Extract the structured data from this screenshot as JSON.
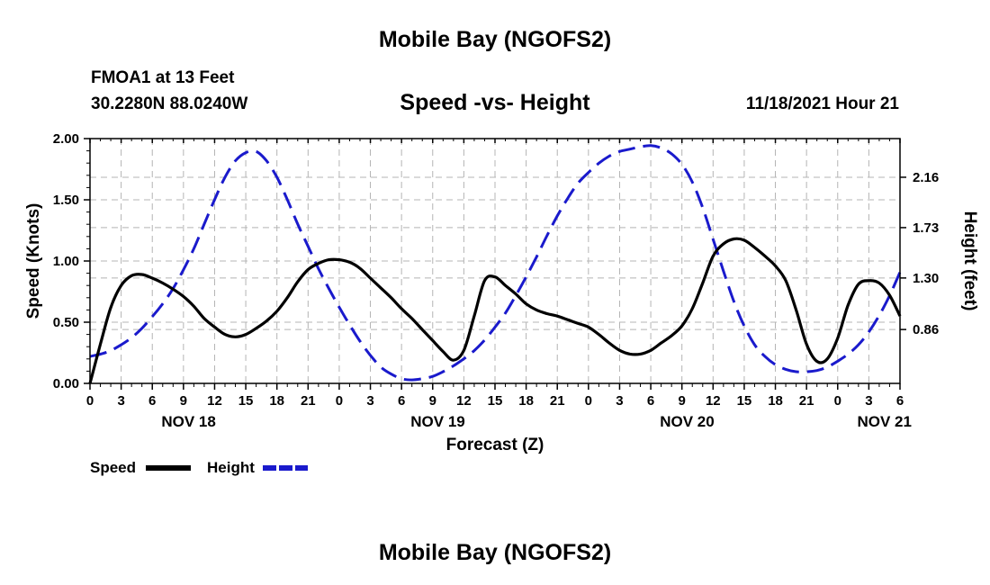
{
  "header": {
    "title": "Mobile Bay (NGOFS2)",
    "station": "FMOA1 at 13 Feet",
    "coordinates": "30.2280N  88.0240W",
    "subtitle": "Speed -vs- Height",
    "datetime": "11/18/2021 Hour 21",
    "bottom_title": "Mobile Bay (NGOFS2)"
  },
  "chart_data": {
    "type": "line",
    "title": "Speed -vs- Height",
    "xlabel": "Forecast (Z)",
    "ylabel": "Speed (Knots)",
    "y2label": "Height (feet)",
    "xlim": [
      0,
      78
    ],
    "ylim": [
      0,
      2.0
    ],
    "y2lim": [
      0.4,
      2.49
    ],
    "grid": true,
    "x_ticks": [
      {
        "x": 0,
        "label": "0"
      },
      {
        "x": 3,
        "label": "3"
      },
      {
        "x": 6,
        "label": "6"
      },
      {
        "x": 9,
        "label": "9"
      },
      {
        "x": 12,
        "label": "12"
      },
      {
        "x": 15,
        "label": "15"
      },
      {
        "x": 18,
        "label": "18"
      },
      {
        "x": 21,
        "label": "21"
      },
      {
        "x": 24,
        "label": "0"
      },
      {
        "x": 27,
        "label": "3"
      },
      {
        "x": 30,
        "label": "6"
      },
      {
        "x": 33,
        "label": "9"
      },
      {
        "x": 36,
        "label": "12"
      },
      {
        "x": 39,
        "label": "15"
      },
      {
        "x": 42,
        "label": "18"
      },
      {
        "x": 45,
        "label": "21"
      },
      {
        "x": 48,
        "label": "0"
      },
      {
        "x": 51,
        "label": "3"
      },
      {
        "x": 54,
        "label": "6"
      },
      {
        "x": 57,
        "label": "9"
      },
      {
        "x": 60,
        "label": "12"
      },
      {
        "x": 63,
        "label": "15"
      },
      {
        "x": 66,
        "label": "18"
      },
      {
        "x": 69,
        "label": "21"
      },
      {
        "x": 72,
        "label": "0"
      },
      {
        "x": 75,
        "label": "3"
      },
      {
        "x": 78,
        "label": "6"
      }
    ],
    "day_labels": [
      {
        "x": 9.5,
        "label": "NOV 18"
      },
      {
        "x": 33.5,
        "label": "NOV 19"
      },
      {
        "x": 57.5,
        "label": "NOV 20"
      },
      {
        "x": 76.5,
        "label": "NOV 21"
      }
    ],
    "y_ticks": [
      0.0,
      0.5,
      1.0,
      1.5,
      2.0
    ],
    "y_tick_labels": [
      "0.00",
      "0.50",
      "1.00",
      "1.50",
      "2.00"
    ],
    "y2_ticks": [
      0.86,
      1.3,
      1.73,
      2.16
    ],
    "y2_tick_labels": [
      "0.86",
      "1.30",
      "1.73",
      "2.16"
    ],
    "series": [
      {
        "name": "Speed",
        "axis": "left",
        "color": "#000000",
        "dash": "solid",
        "points": [
          [
            0,
            0.0
          ],
          [
            1,
            0.32
          ],
          [
            2,
            0.62
          ],
          [
            3,
            0.8
          ],
          [
            4,
            0.88
          ],
          [
            5,
            0.89
          ],
          [
            6,
            0.86
          ],
          [
            7,
            0.82
          ],
          [
            8,
            0.77
          ],
          [
            9,
            0.71
          ],
          [
            10,
            0.63
          ],
          [
            11,
            0.53
          ],
          [
            12,
            0.46
          ],
          [
            13,
            0.4
          ],
          [
            14,
            0.38
          ],
          [
            15,
            0.4
          ],
          [
            16,
            0.45
          ],
          [
            17,
            0.51
          ],
          [
            18,
            0.59
          ],
          [
            19,
            0.7
          ],
          [
            20,
            0.83
          ],
          [
            21,
            0.93
          ],
          [
            22,
            0.98
          ],
          [
            23,
            1.01
          ],
          [
            24,
            1.01
          ],
          [
            25,
            0.99
          ],
          [
            26,
            0.94
          ],
          [
            27,
            0.86
          ],
          [
            28,
            0.78
          ],
          [
            29,
            0.7
          ],
          [
            30,
            0.61
          ],
          [
            31,
            0.53
          ],
          [
            32,
            0.44
          ],
          [
            33,
            0.35
          ],
          [
            34,
            0.26
          ],
          [
            35,
            0.19
          ],
          [
            36,
            0.27
          ],
          [
            37,
            0.55
          ],
          [
            38,
            0.84
          ],
          [
            39,
            0.87
          ],
          [
            40,
            0.8
          ],
          [
            41,
            0.73
          ],
          [
            42,
            0.65
          ],
          [
            43,
            0.6
          ],
          [
            44,
            0.57
          ],
          [
            45,
            0.55
          ],
          [
            46,
            0.52
          ],
          [
            47,
            0.49
          ],
          [
            48,
            0.46
          ],
          [
            49,
            0.4
          ],
          [
            50,
            0.33
          ],
          [
            51,
            0.27
          ],
          [
            52,
            0.24
          ],
          [
            53,
            0.24
          ],
          [
            54,
            0.27
          ],
          [
            55,
            0.33
          ],
          [
            56,
            0.39
          ],
          [
            57,
            0.47
          ],
          [
            58,
            0.61
          ],
          [
            59,
            0.82
          ],
          [
            60,
            1.04
          ],
          [
            61,
            1.14
          ],
          [
            62,
            1.18
          ],
          [
            63,
            1.17
          ],
          [
            64,
            1.11
          ],
          [
            65,
            1.04
          ],
          [
            66,
            0.96
          ],
          [
            67,
            0.84
          ],
          [
            68,
            0.6
          ],
          [
            69,
            0.32
          ],
          [
            70,
            0.18
          ],
          [
            71,
            0.2
          ],
          [
            72,
            0.37
          ],
          [
            73,
            0.64
          ],
          [
            74,
            0.81
          ],
          [
            75,
            0.84
          ],
          [
            76,
            0.82
          ],
          [
            77,
            0.72
          ],
          [
            78,
            0.55
          ]
        ]
      },
      {
        "name": "Height",
        "axis": "right",
        "color": "#1a1acc",
        "dash": "dashed",
        "points": [
          [
            0,
            0.63
          ],
          [
            1,
            0.65
          ],
          [
            2,
            0.68
          ],
          [
            3,
            0.73
          ],
          [
            4,
            0.79
          ],
          [
            5,
            0.87
          ],
          [
            6,
            0.97
          ],
          [
            7,
            1.08
          ],
          [
            8,
            1.21
          ],
          [
            9,
            1.37
          ],
          [
            10,
            1.55
          ],
          [
            11,
            1.76
          ],
          [
            12,
            1.97
          ],
          [
            13,
            2.16
          ],
          [
            14,
            2.3
          ],
          [
            15,
            2.37
          ],
          [
            16,
            2.38
          ],
          [
            17,
            2.3
          ],
          [
            18,
            2.16
          ],
          [
            19,
            1.97
          ],
          [
            20,
            1.76
          ],
          [
            21,
            1.57
          ],
          [
            22,
            1.38
          ],
          [
            23,
            1.21
          ],
          [
            24,
            1.05
          ],
          [
            25,
            0.9
          ],
          [
            26,
            0.76
          ],
          [
            27,
            0.64
          ],
          [
            28,
            0.54
          ],
          [
            29,
            0.48
          ],
          [
            30,
            0.44
          ],
          [
            31,
            0.43
          ],
          [
            32,
            0.44
          ],
          [
            33,
            0.46
          ],
          [
            34,
            0.5
          ],
          [
            35,
            0.55
          ],
          [
            36,
            0.61
          ],
          [
            37,
            0.68
          ],
          [
            38,
            0.77
          ],
          [
            39,
            0.88
          ],
          [
            40,
            1.0
          ],
          [
            41,
            1.15
          ],
          [
            42,
            1.31
          ],
          [
            43,
            1.48
          ],
          [
            44,
            1.66
          ],
          [
            45,
            1.83
          ],
          [
            46,
            1.98
          ],
          [
            47,
            2.11
          ],
          [
            48,
            2.2
          ],
          [
            49,
            2.28
          ],
          [
            50,
            2.34
          ],
          [
            51,
            2.38
          ],
          [
            52,
            2.4
          ],
          [
            53,
            2.42
          ],
          [
            54,
            2.43
          ],
          [
            55,
            2.41
          ],
          [
            56,
            2.36
          ],
          [
            57,
            2.27
          ],
          [
            58,
            2.12
          ],
          [
            59,
            1.9
          ],
          [
            60,
            1.63
          ],
          [
            61,
            1.36
          ],
          [
            62,
            1.1
          ],
          [
            63,
            0.89
          ],
          [
            64,
            0.73
          ],
          [
            65,
            0.63
          ],
          [
            66,
            0.56
          ],
          [
            67,
            0.52
          ],
          [
            68,
            0.5
          ],
          [
            69,
            0.5
          ],
          [
            70,
            0.51
          ],
          [
            71,
            0.54
          ],
          [
            72,
            0.59
          ],
          [
            73,
            0.65
          ],
          [
            74,
            0.73
          ],
          [
            75,
            0.84
          ],
          [
            76,
            0.98
          ],
          [
            77,
            1.15
          ],
          [
            78,
            1.35
          ]
        ]
      }
    ],
    "legend": [
      {
        "label": "Speed",
        "color": "#000000",
        "dash": "solid"
      },
      {
        "label": "Height",
        "color": "#1a1acc",
        "dash": "dashed"
      }
    ],
    "legend_position": "bottom-left"
  }
}
